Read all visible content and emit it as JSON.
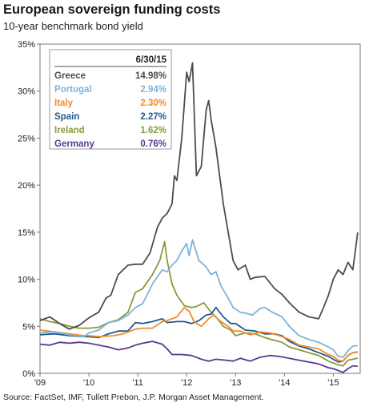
{
  "title": "European sovereign funding costs",
  "subtitle": "10-year benchmark bond yield",
  "source": "Source: FactSet, IMF, Tullett Prebon, J.P. Morgan Asset Management.",
  "chart_data": {
    "type": "line",
    "title": "European sovereign funding costs",
    "subtitle": "10-year benchmark bond yield",
    "xlabel": "",
    "ylabel": "",
    "xlim": [
      2009.0,
      2015.55
    ],
    "ylim": [
      0,
      35
    ],
    "x_ticks": [
      "'09",
      "'10",
      "'11",
      "'12",
      "'13",
      "'14",
      "'15"
    ],
    "x_tick_values": [
      2009,
      2010,
      2011,
      2012,
      2013,
      2014,
      2015
    ],
    "y_ticks": [
      "0%",
      "5%",
      "10%",
      "15%",
      "20%",
      "25%",
      "30%",
      "35%"
    ],
    "y_tick_values": [
      0,
      5,
      10,
      15,
      20,
      25,
      30,
      35
    ],
    "grid": false,
    "legend": {
      "placement": "top-left",
      "header": "6/30/15",
      "entries": [
        {
          "name": "Greece",
          "value": "14.98%"
        },
        {
          "name": "Portugal",
          "value": "2.94%"
        },
        {
          "name": "Italy",
          "value": "2.30%"
        },
        {
          "name": "Spain",
          "value": "2.27%"
        },
        {
          "name": "Ireland",
          "value": "1.62%"
        },
        {
          "name": "Germany",
          "value": "0.76%"
        }
      ]
    },
    "series": [
      {
        "name": "Greece",
        "color": "#4d4d4d",
        "points": [
          [
            2009.0,
            5.6
          ],
          [
            2009.2,
            6.0
          ],
          [
            2009.4,
            5.3
          ],
          [
            2009.6,
            4.7
          ],
          [
            2009.8,
            5.1
          ],
          [
            2010.0,
            5.9
          ],
          [
            2010.2,
            6.5
          ],
          [
            2010.35,
            8.0
          ],
          [
            2010.45,
            8.3
          ],
          [
            2010.6,
            10.5
          ],
          [
            2010.8,
            11.5
          ],
          [
            2010.95,
            11.6
          ],
          [
            2011.1,
            11.6
          ],
          [
            2011.25,
            12.8
          ],
          [
            2011.4,
            15.5
          ],
          [
            2011.5,
            16.5
          ],
          [
            2011.6,
            17.0
          ],
          [
            2011.7,
            18.0
          ],
          [
            2011.75,
            21.0
          ],
          [
            2011.8,
            20.5
          ],
          [
            2011.9,
            25.0
          ],
          [
            2012.0,
            32.0
          ],
          [
            2012.05,
            31.0
          ],
          [
            2012.12,
            33.0
          ],
          [
            2012.2,
            21.0
          ],
          [
            2012.3,
            22.0
          ],
          [
            2012.4,
            28.0
          ],
          [
            2012.45,
            29.0
          ],
          [
            2012.5,
            27.0
          ],
          [
            2012.6,
            24.0
          ],
          [
            2012.75,
            18.0
          ],
          [
            2012.85,
            15.0
          ],
          [
            2012.95,
            12.0
          ],
          [
            2013.05,
            11.0
          ],
          [
            2013.2,
            11.5
          ],
          [
            2013.3,
            10.0
          ],
          [
            2013.4,
            10.2
          ],
          [
            2013.6,
            10.3
          ],
          [
            2013.8,
            9.0
          ],
          [
            2013.95,
            8.4
          ],
          [
            2014.1,
            7.5
          ],
          [
            2014.3,
            6.5
          ],
          [
            2014.5,
            6.0
          ],
          [
            2014.7,
            5.8
          ],
          [
            2014.8,
            7.0
          ],
          [
            2014.9,
            8.3
          ],
          [
            2015.0,
            10.0
          ],
          [
            2015.1,
            11.0
          ],
          [
            2015.2,
            10.5
          ],
          [
            2015.3,
            11.8
          ],
          [
            2015.4,
            11.0
          ],
          [
            2015.45,
            13.0
          ],
          [
            2015.5,
            14.98
          ]
        ]
      },
      {
        "name": "Portugal",
        "color": "#7fb3d9",
        "points": [
          [
            2009.0,
            4.3
          ],
          [
            2009.3,
            4.4
          ],
          [
            2009.6,
            4.1
          ],
          [
            2009.9,
            3.9
          ],
          [
            2010.0,
            4.3
          ],
          [
            2010.2,
            4.6
          ],
          [
            2010.4,
            5.4
          ],
          [
            2010.6,
            5.6
          ],
          [
            2010.8,
            6.2
          ],
          [
            2010.95,
            7.0
          ],
          [
            2011.1,
            7.4
          ],
          [
            2011.3,
            9.5
          ],
          [
            2011.5,
            11.0
          ],
          [
            2011.6,
            10.8
          ],
          [
            2011.7,
            11.5
          ],
          [
            2011.8,
            12.0
          ],
          [
            2011.9,
            13.0
          ],
          [
            2012.0,
            13.8
          ],
          [
            2012.05,
            12.5
          ],
          [
            2012.12,
            14.2
          ],
          [
            2012.25,
            12.0
          ],
          [
            2012.4,
            11.3
          ],
          [
            2012.5,
            10.5
          ],
          [
            2012.6,
            10.8
          ],
          [
            2012.7,
            9.3
          ],
          [
            2012.85,
            8.0
          ],
          [
            2012.95,
            7.0
          ],
          [
            2013.1,
            6.5
          ],
          [
            2013.2,
            6.4
          ],
          [
            2013.35,
            6.2
          ],
          [
            2013.5,
            6.9
          ],
          [
            2013.6,
            7.0
          ],
          [
            2013.75,
            6.5
          ],
          [
            2013.95,
            6.0
          ],
          [
            2014.1,
            5.0
          ],
          [
            2014.3,
            4.0
          ],
          [
            2014.5,
            3.6
          ],
          [
            2014.7,
            3.3
          ],
          [
            2014.9,
            2.8
          ],
          [
            2015.0,
            2.5
          ],
          [
            2015.1,
            1.8
          ],
          [
            2015.2,
            1.7
          ],
          [
            2015.3,
            2.4
          ],
          [
            2015.4,
            2.9
          ],
          [
            2015.5,
            2.94
          ]
        ]
      },
      {
        "name": "Italy",
        "color": "#f48a2a",
        "points": [
          [
            2009.0,
            4.6
          ],
          [
            2009.3,
            4.4
          ],
          [
            2009.6,
            4.2
          ],
          [
            2009.9,
            4.0
          ],
          [
            2010.0,
            4.0
          ],
          [
            2010.2,
            3.9
          ],
          [
            2010.5,
            4.0
          ],
          [
            2010.7,
            4.2
          ],
          [
            2010.95,
            4.7
          ],
          [
            2011.1,
            4.8
          ],
          [
            2011.3,
            4.8
          ],
          [
            2011.5,
            5.5
          ],
          [
            2011.6,
            5.6
          ],
          [
            2011.8,
            6.0
          ],
          [
            2011.95,
            7.0
          ],
          [
            2012.05,
            6.6
          ],
          [
            2012.15,
            5.5
          ],
          [
            2012.3,
            5.0
          ],
          [
            2012.45,
            5.8
          ],
          [
            2012.55,
            6.2
          ],
          [
            2012.7,
            5.5
          ],
          [
            2012.85,
            5.0
          ],
          [
            2012.95,
            4.5
          ],
          [
            2013.1,
            4.5
          ],
          [
            2013.3,
            4.1
          ],
          [
            2013.5,
            4.4
          ],
          [
            2013.7,
            4.3
          ],
          [
            2013.9,
            4.0
          ],
          [
            2014.1,
            3.6
          ],
          [
            2014.3,
            3.0
          ],
          [
            2014.5,
            2.8
          ],
          [
            2014.7,
            2.6
          ],
          [
            2014.9,
            2.0
          ],
          [
            2015.0,
            1.8
          ],
          [
            2015.1,
            1.4
          ],
          [
            2015.2,
            1.3
          ],
          [
            2015.3,
            1.9
          ],
          [
            2015.4,
            2.2
          ],
          [
            2015.5,
            2.3
          ]
        ]
      },
      {
        "name": "Spain",
        "color": "#1f5b8f",
        "points": [
          [
            2009.0,
            4.1
          ],
          [
            2009.3,
            4.2
          ],
          [
            2009.6,
            4.0
          ],
          [
            2009.9,
            3.9
          ],
          [
            2010.0,
            3.9
          ],
          [
            2010.2,
            3.8
          ],
          [
            2010.4,
            4.2
          ],
          [
            2010.6,
            4.5
          ],
          [
            2010.8,
            4.5
          ],
          [
            2010.95,
            5.4
          ],
          [
            2011.1,
            5.3
          ],
          [
            2011.3,
            5.5
          ],
          [
            2011.5,
            5.8
          ],
          [
            2011.6,
            5.4
          ],
          [
            2011.8,
            5.5
          ],
          [
            2011.95,
            5.5
          ],
          [
            2012.1,
            5.3
          ],
          [
            2012.25,
            5.6
          ],
          [
            2012.4,
            6.2
          ],
          [
            2012.5,
            6.3
          ],
          [
            2012.6,
            7.0
          ],
          [
            2012.75,
            6.0
          ],
          [
            2012.9,
            5.3
          ],
          [
            2013.0,
            5.3
          ],
          [
            2013.2,
            4.6
          ],
          [
            2013.4,
            4.5
          ],
          [
            2013.6,
            4.2
          ],
          [
            2013.8,
            4.2
          ],
          [
            2013.95,
            4.0
          ],
          [
            2014.1,
            3.4
          ],
          [
            2014.3,
            2.9
          ],
          [
            2014.5,
            2.6
          ],
          [
            2014.7,
            2.2
          ],
          [
            2014.9,
            1.8
          ],
          [
            2015.0,
            1.5
          ],
          [
            2015.1,
            1.2
          ],
          [
            2015.2,
            1.3
          ],
          [
            2015.3,
            1.9
          ],
          [
            2015.4,
            2.2
          ],
          [
            2015.5,
            2.27
          ]
        ]
      },
      {
        "name": "Ireland",
        "color": "#8c9a3c",
        "points": [
          [
            2009.0,
            5.8
          ],
          [
            2009.2,
            5.5
          ],
          [
            2009.4,
            5.3
          ],
          [
            2009.6,
            5.0
          ],
          [
            2009.8,
            4.8
          ],
          [
            2010.0,
            4.8
          ],
          [
            2010.2,
            4.9
          ],
          [
            2010.4,
            5.4
          ],
          [
            2010.6,
            5.7
          ],
          [
            2010.8,
            6.5
          ],
          [
            2010.95,
            8.6
          ],
          [
            2011.1,
            9.0
          ],
          [
            2011.3,
            10.5
          ],
          [
            2011.45,
            12.0
          ],
          [
            2011.55,
            14.0
          ],
          [
            2011.6,
            12.0
          ],
          [
            2011.7,
            9.5
          ],
          [
            2011.8,
            8.3
          ],
          [
            2011.95,
            7.2
          ],
          [
            2012.1,
            7.0
          ],
          [
            2012.2,
            7.1
          ],
          [
            2012.35,
            7.5
          ],
          [
            2012.5,
            6.5
          ],
          [
            2012.6,
            6.0
          ],
          [
            2012.75,
            5.0
          ],
          [
            2012.9,
            4.6
          ],
          [
            2013.0,
            4.0
          ],
          [
            2013.2,
            4.3
          ],
          [
            2013.4,
            4.2
          ],
          [
            2013.6,
            3.8
          ],
          [
            2013.8,
            3.5
          ],
          [
            2013.95,
            3.3
          ],
          [
            2014.1,
            2.8
          ],
          [
            2014.3,
            2.5
          ],
          [
            2014.5,
            2.2
          ],
          [
            2014.7,
            1.9
          ],
          [
            2014.9,
            1.3
          ],
          [
            2015.0,
            1.1
          ],
          [
            2015.1,
            0.9
          ],
          [
            2015.2,
            0.8
          ],
          [
            2015.3,
            1.4
          ],
          [
            2015.4,
            1.5
          ],
          [
            2015.5,
            1.62
          ]
        ]
      },
      {
        "name": "Germany",
        "color": "#5a3a8e",
        "points": [
          [
            2009.0,
            3.1
          ],
          [
            2009.2,
            3.0
          ],
          [
            2009.4,
            3.3
          ],
          [
            2009.6,
            3.2
          ],
          [
            2009.8,
            3.3
          ],
          [
            2010.0,
            3.2
          ],
          [
            2010.2,
            3.0
          ],
          [
            2010.4,
            2.8
          ],
          [
            2010.6,
            2.5
          ],
          [
            2010.8,
            2.7
          ],
          [
            2010.95,
            3.0
          ],
          [
            2011.1,
            3.2
          ],
          [
            2011.3,
            3.4
          ],
          [
            2011.5,
            3.1
          ],
          [
            2011.6,
            2.6
          ],
          [
            2011.7,
            2.0
          ],
          [
            2011.9,
            2.0
          ],
          [
            2012.1,
            1.9
          ],
          [
            2012.3,
            1.5
          ],
          [
            2012.45,
            1.3
          ],
          [
            2012.6,
            1.5
          ],
          [
            2012.8,
            1.4
          ],
          [
            2012.95,
            1.3
          ],
          [
            2013.1,
            1.6
          ],
          [
            2013.3,
            1.3
          ],
          [
            2013.5,
            1.7
          ],
          [
            2013.7,
            1.9
          ],
          [
            2013.9,
            1.8
          ],
          [
            2014.1,
            1.6
          ],
          [
            2014.3,
            1.4
          ],
          [
            2014.5,
            1.2
          ],
          [
            2014.7,
            1.0
          ],
          [
            2014.9,
            0.6
          ],
          [
            2015.0,
            0.5
          ],
          [
            2015.1,
            0.3
          ],
          [
            2015.2,
            0.1
          ],
          [
            2015.3,
            0.5
          ],
          [
            2015.4,
            0.8
          ],
          [
            2015.5,
            0.76
          ]
        ]
      }
    ]
  }
}
